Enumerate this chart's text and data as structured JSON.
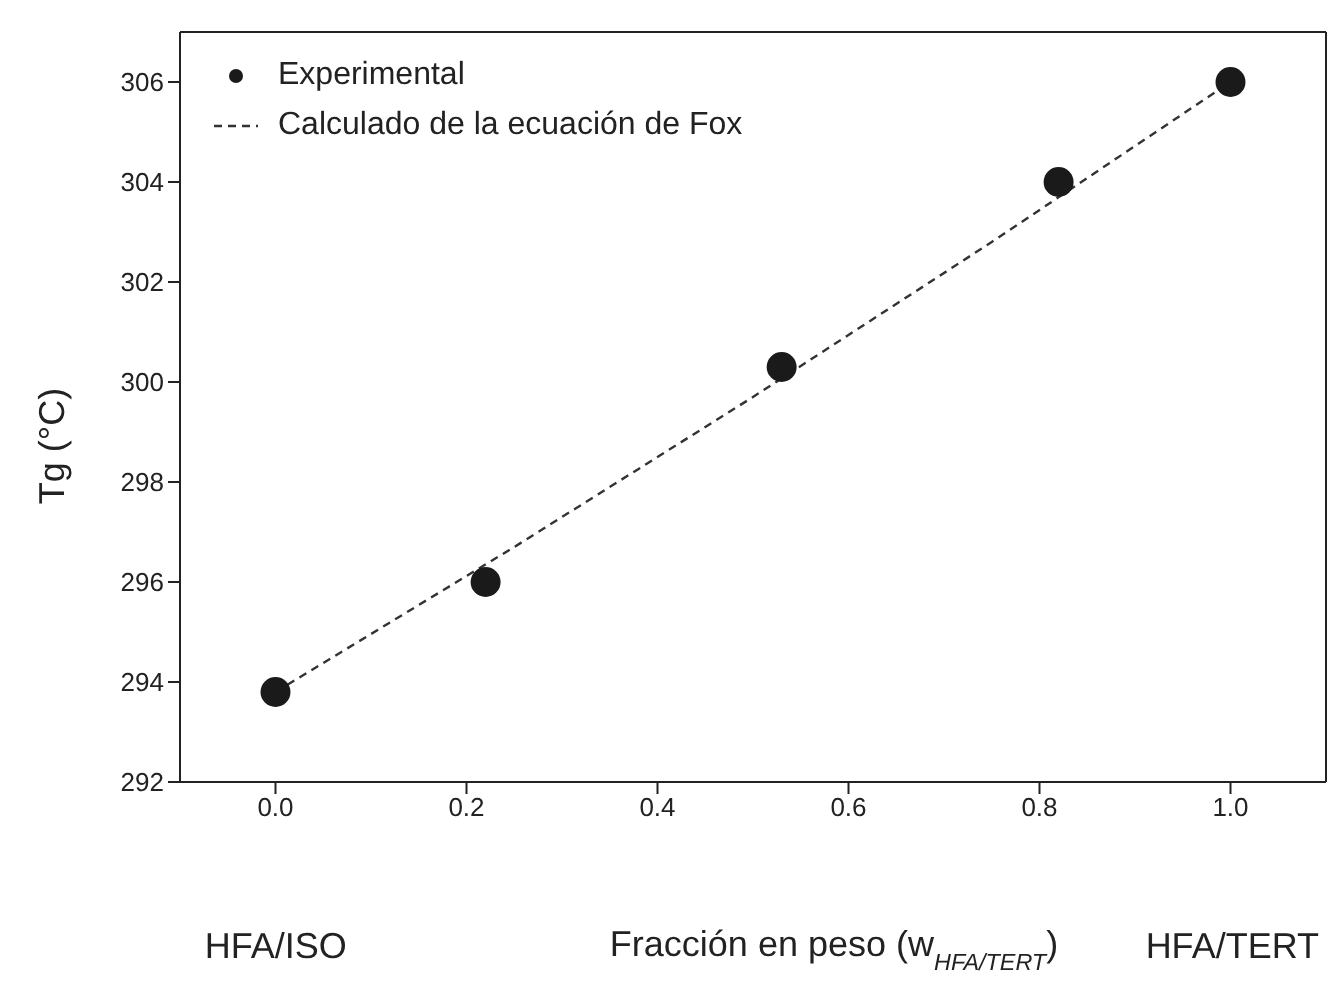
{
  "chart_data": {
    "type": "scatter",
    "xlabel": "Fracción en peso (w$_{HFA/TERT}$)",
    "ylabel": "Tg (°C)",
    "xlim": [
      -0.1,
      1.1
    ],
    "xticks": [
      {
        "value": 0,
        "label": "0.0"
      },
      0.2,
      0.4,
      0.6,
      0.8,
      {
        "value": 1,
        "label": "1.0"
      }
    ],
    "ylim": [
      292,
      307
    ],
    "yticks": [
      292,
      294,
      296,
      298,
      300,
      302,
      304,
      306
    ],
    "series": [
      {
        "name": "Experimental",
        "color": "#1a1a1a",
        "marker": "circle",
        "x": [
          0,
          0.22,
          0.53,
          0.82,
          1.0
        ],
        "values": [
          293.8,
          296,
          300.3,
          304,
          306
        ]
      },
      {
        "name": "Calculado de la ecuación de Fox",
        "type": "line",
        "color": "#333333",
        "line_style": "dashed",
        "marker": "none",
        "x": [
          0,
          0.25,
          0.5,
          0.75,
          1.0
        ],
        "values": [
          293.8,
          296.7,
          299.7,
          302.8,
          306
        ]
      }
    ],
    "legend": "top left",
    "annotations": [
      "HFA/ISO",
      "HFA/TERT"
    ]
  }
}
